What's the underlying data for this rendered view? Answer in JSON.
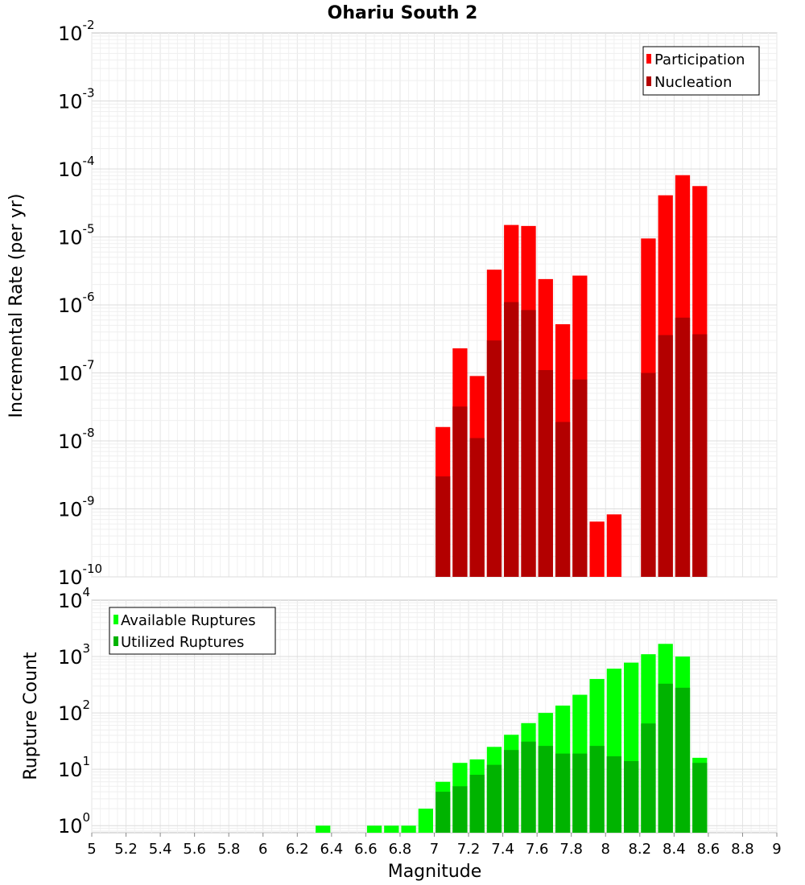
{
  "chart_data": [
    {
      "type": "bar",
      "title": "Ohariu South 2",
      "xlabel": "",
      "ylabel": "Incremental Rate (per yr)",
      "y_scale": "log",
      "ylim": [
        1e-10,
        0.01
      ],
      "xlim": [
        5,
        9
      ],
      "y_tick_base": "10",
      "y_tick_exponents": [
        "-10",
        "-9",
        "-8",
        "-7",
        "-6",
        "-5",
        "-4",
        "-3",
        "-2"
      ],
      "grid": true,
      "legend_position": "top-right",
      "bar_width": 0.1,
      "x": [
        7.05,
        7.15,
        7.25,
        7.35,
        7.45,
        7.55,
        7.65,
        7.75,
        7.85,
        7.95,
        8.05,
        8.25,
        8.35,
        8.45,
        8.55
      ],
      "series": [
        {
          "name": "Participation",
          "color": "#ff0000",
          "values": [
            1.6e-08,
            2.3e-07,
            9e-08,
            3.3e-06,
            1.5e-05,
            1.45e-05,
            2.4e-06,
            5.2e-07,
            2.7e-06,
            6.5e-10,
            8.3e-10,
            9.5e-06,
            4.1e-05,
            8.1e-05,
            5.6e-05
          ]
        },
        {
          "name": "Nucleation",
          "color": "#b30000",
          "values": [
            3e-09,
            3.2e-08,
            1.1e-08,
            3e-07,
            1.1e-06,
            8.4e-07,
            1.1e-07,
            1.9e-08,
            8e-08,
            null,
            null,
            1e-07,
            3.6e-07,
            6.5e-07,
            3.7e-07
          ]
        }
      ]
    },
    {
      "type": "bar",
      "title": "",
      "xlabel": "Magnitude",
      "ylabel": "Rupture Count",
      "y_scale": "log",
      "ylim": [
        0.75,
        10000
      ],
      "xlim": [
        5,
        9
      ],
      "y_tick_base": "10",
      "y_tick_exponents": [
        "0",
        "1",
        "2",
        "3",
        "4"
      ],
      "x_tick_labels": [
        "5",
        "5.2",
        "5.4",
        "5.6",
        "5.8",
        "6",
        "6.2",
        "6.4",
        "6.6",
        "6.8",
        "7",
        "7.2",
        "7.4",
        "7.6",
        "7.8",
        "8",
        "8.2",
        "8.4",
        "8.6",
        "8.8",
        "9"
      ],
      "grid": true,
      "legend_position": "top-left",
      "bar_width": 0.1,
      "x": [
        6.35,
        6.65,
        6.75,
        6.85,
        6.95,
        7.05,
        7.15,
        7.25,
        7.35,
        7.45,
        7.55,
        7.65,
        7.75,
        7.85,
        7.95,
        8.05,
        8.15,
        8.25,
        8.35,
        8.45,
        8.55
      ],
      "series": [
        {
          "name": "Available Ruptures",
          "color": "#00ff00",
          "values": [
            1,
            1,
            1,
            1,
            2,
            6,
            13,
            15,
            25,
            41,
            66,
            100,
            135,
            210,
            400,
            610,
            780,
            1100,
            1680,
            1000,
            16
          ]
        },
        {
          "name": "Utilized Ruptures",
          "color": "#00b300",
          "values": [
            null,
            null,
            null,
            null,
            null,
            4,
            5,
            8,
            12,
            22,
            31,
            26,
            19,
            19,
            26,
            17,
            14,
            65,
            330,
            280,
            13
          ]
        }
      ]
    }
  ]
}
